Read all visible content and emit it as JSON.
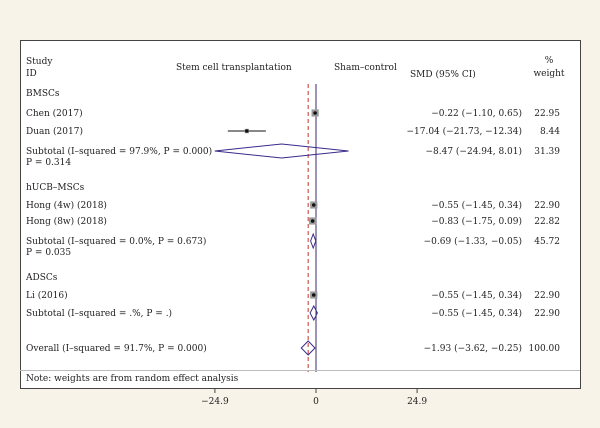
{
  "chart_data": {
    "type": "forest",
    "header": {
      "study": "Study",
      "id": "ID",
      "left_group": "Stem cell transplantation",
      "right_group": "Sham–control",
      "effect_col": "SMD (95% CI)",
      "weight_col_top": "%",
      "weight_col_bottom": "weight"
    },
    "xaxis": {
      "min": -24.9,
      "max": 24.9,
      "ticks": [
        {
          "value": -24.9,
          "label": "−24.9"
        },
        {
          "value": 0,
          "label": "0"
        },
        {
          "value": 24.9,
          "label": "24.9"
        }
      ],
      "null_line": 0,
      "overall_line": -1.93
    },
    "rows": [
      {
        "kind": "group",
        "label": "BMSCs"
      },
      {
        "kind": "study",
        "label": "Chen (2017)",
        "est": -0.22,
        "lo": -1.1,
        "hi": 0.65,
        "ci_text": "−0.22 (−1.10, 0.65)",
        "weight": "22.95"
      },
      {
        "kind": "study",
        "label": "Duan (2017)",
        "est": -17.04,
        "lo": -21.73,
        "hi": -12.34,
        "ci_text": "−17.04 (−21.73, −12.34)",
        "weight": "8.44"
      },
      {
        "kind": "subtotal",
        "label": "Subtotal (I–squared = 97.9%, P = 0.000)",
        "label2": "P = 0.314",
        "est": -8.47,
        "lo": -24.94,
        "hi": 8.01,
        "ci_text": "−8.47 (−24.94, 8.01)",
        "weight": "31.39"
      },
      {
        "kind": "group",
        "label": "hUCB–MSCs"
      },
      {
        "kind": "study",
        "label": "Hong (4w) (2018)",
        "est": -0.55,
        "lo": -1.45,
        "hi": 0.34,
        "ci_text": "−0.55 (−1.45, 0.34)",
        "weight": "22.90"
      },
      {
        "kind": "study",
        "label": "Hong (8w) (2018)",
        "est": -0.83,
        "lo": -1.75,
        "hi": 0.09,
        "ci_text": "−0.83 (−1.75, 0.09)",
        "weight": "22.82"
      },
      {
        "kind": "subtotal",
        "label": "Subtotal (I–squared = 0.0%, P = 0.673)",
        "label2": "P = 0.035",
        "est": -0.69,
        "lo": -1.33,
        "hi": -0.05,
        "ci_text": "−0.69 (−1.33, −0.05)",
        "weight": "45.72"
      },
      {
        "kind": "group",
        "label": "ADSCs"
      },
      {
        "kind": "study",
        "label": "Li (2016)",
        "est": -0.55,
        "lo": -1.45,
        "hi": 0.34,
        "ci_text": "−0.55 (−1.45, 0.34)",
        "weight": "22.90"
      },
      {
        "kind": "subtotal",
        "label": "Subtotal (I–squared = .%, P = .)",
        "est": -0.55,
        "lo": -1.45,
        "hi": 0.34,
        "ci_text": "−0.55 (−1.45, 0.34)",
        "weight": "22.90"
      },
      {
        "kind": "overall",
        "label": "Overall (I–squared = 91.7%, P = 0.000)",
        "est": -1.93,
        "lo": -3.62,
        "hi": -0.25,
        "ci_text": "−1.93 (−3.62, −0.25)",
        "weight": "100.00"
      }
    ],
    "note": "Note: weights are from random effect analysis"
  }
}
